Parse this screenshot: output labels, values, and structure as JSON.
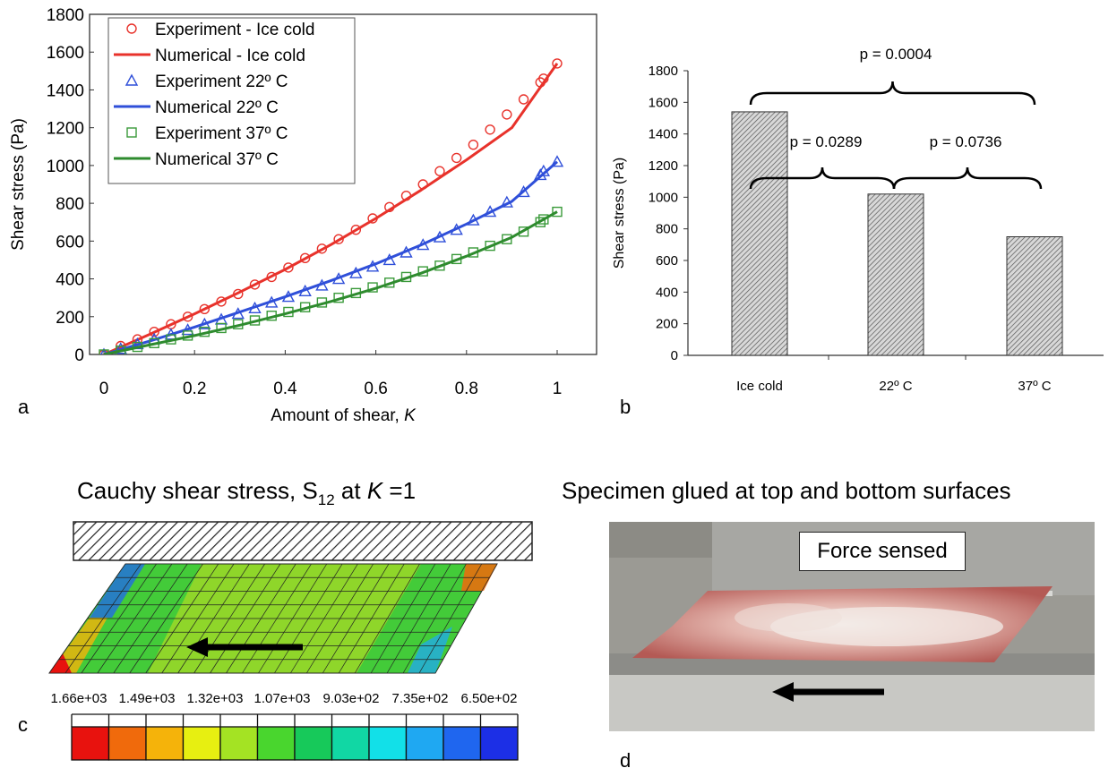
{
  "figure": {
    "panel_letters": [
      "a",
      "b",
      "c",
      "d"
    ]
  },
  "chart_data": [
    {
      "type": "line",
      "panel": "a",
      "xlabel": "Amount of shear, K",
      "ylabel": "Shear stress (Pa)",
      "xlim": [
        0,
        1.1
      ],
      "ylim": [
        0,
        1800
      ],
      "xticks": [
        "0",
        "0.2",
        "0.4",
        "0.6",
        "0.8",
        "1"
      ],
      "yticks": [
        "0",
        "200",
        "400",
        "600",
        "800",
        "1000",
        "1200",
        "1400",
        "1600",
        "1800"
      ],
      "grid": false,
      "legend_placement": "top-left",
      "series": [
        {
          "name": "Experiment - Ice cold",
          "kind": "scatter",
          "marker": "circle",
          "color": "#e8322b",
          "x": [
            0,
            0.037,
            0.074,
            0.111,
            0.148,
            0.185,
            0.222,
            0.259,
            0.296,
            0.333,
            0.37,
            0.407,
            0.444,
            0.481,
            0.518,
            0.556,
            0.593,
            0.63,
            0.667,
            0.704,
            0.741,
            0.778,
            0.815,
            0.852,
            0.889,
            0.926,
            0.963,
            0.97,
            1.0
          ],
          "y": [
            0,
            45,
            80,
            120,
            160,
            200,
            240,
            280,
            320,
            370,
            410,
            460,
            510,
            560,
            610,
            660,
            720,
            780,
            840,
            900,
            970,
            1040,
            1110,
            1190,
            1270,
            1350,
            1440,
            1460,
            1540
          ]
        },
        {
          "name": "Numerical   - Ice cold",
          "kind": "line",
          "color": "#e8322b",
          "x": [
            0,
            0.1,
            0.2,
            0.3,
            0.4,
            0.5,
            0.6,
            0.7,
            0.8,
            0.9,
            1.0
          ],
          "y": [
            0,
            105,
            215,
            330,
            450,
            580,
            720,
            870,
            1030,
            1200,
            1540
          ]
        },
        {
          "name": "Experiment  22º C",
          "kind": "scatter",
          "marker": "triangle",
          "color": "#2f4fd9",
          "x": [
            0,
            0.037,
            0.074,
            0.111,
            0.148,
            0.185,
            0.222,
            0.259,
            0.296,
            0.333,
            0.37,
            0.407,
            0.444,
            0.481,
            0.518,
            0.556,
            0.593,
            0.63,
            0.667,
            0.704,
            0.741,
            0.778,
            0.815,
            0.852,
            0.889,
            0.926,
            0.963,
            0.97,
            1.0
          ],
          "y": [
            0,
            30,
            55,
            80,
            105,
            130,
            160,
            185,
            215,
            245,
            275,
            305,
            335,
            365,
            400,
            430,
            465,
            500,
            540,
            580,
            620,
            660,
            710,
            755,
            805,
            860,
            950,
            970,
            1020
          ]
        },
        {
          "name": "Numerical    22º C",
          "kind": "line",
          "color": "#2f4fd9",
          "x": [
            0,
            0.1,
            0.2,
            0.3,
            0.4,
            0.5,
            0.6,
            0.7,
            0.8,
            0.9,
            1.0
          ],
          "y": [
            0,
            70,
            145,
            225,
            305,
            390,
            480,
            580,
            690,
            810,
            1020
          ]
        },
        {
          "name": "Experiment  37º C",
          "kind": "scatter",
          "marker": "square",
          "color": "#3a9a3a",
          "x": [
            0,
            0.037,
            0.074,
            0.111,
            0.148,
            0.185,
            0.222,
            0.259,
            0.296,
            0.333,
            0.37,
            0.407,
            0.444,
            0.481,
            0.518,
            0.556,
            0.593,
            0.63,
            0.667,
            0.704,
            0.741,
            0.778,
            0.815,
            0.852,
            0.889,
            0.926,
            0.963,
            0.97,
            1.0
          ],
          "y": [
            0,
            20,
            40,
            60,
            80,
            100,
            120,
            140,
            160,
            180,
            205,
            225,
            250,
            275,
            300,
            325,
            355,
            380,
            410,
            440,
            470,
            505,
            540,
            575,
            610,
            650,
            700,
            715,
            755
          ]
        },
        {
          "name": "Numerical    37º C",
          "kind": "line",
          "color": "#2e8b2e",
          "x": [
            0,
            0.1,
            0.2,
            0.3,
            0.4,
            0.5,
            0.6,
            0.7,
            0.8,
            0.9,
            1.0
          ],
          "y": [
            0,
            50,
            100,
            155,
            215,
            280,
            350,
            430,
            520,
            620,
            755
          ]
        }
      ]
    },
    {
      "type": "bar",
      "panel": "b",
      "xlabel": "",
      "ylabel": "Shear stress (Pa)",
      "ylim": [
        0,
        1800
      ],
      "yticks": [
        "0",
        "200",
        "400",
        "600",
        "800",
        "1000",
        "1200",
        "1400",
        "1600",
        "1800"
      ],
      "categories": [
        "Ice cold",
        "22º C",
        "37º C"
      ],
      "values": [
        1540,
        1020,
        750
      ],
      "grid": false,
      "annotations": [
        {
          "text": "p = 0.0004",
          "from": 0,
          "to": 2
        },
        {
          "text": "p = 0.0289",
          "from": 0,
          "to": 1
        },
        {
          "text": "p = 0.0736",
          "from": 1,
          "to": 2
        }
      ]
    }
  ],
  "panel_c": {
    "title_main": "Cauchy shear stress, S",
    "title_sub": "12",
    "title_at": " at ",
    "title_k": "K",
    "title_eq": " =1",
    "scale_labels": [
      "1.66e+03",
      "1.49e+03",
      "1.32e+03",
      "1.07e+03",
      "9.03e+02",
      "7.35e+02",
      "6.50e+02"
    ],
    "scale_colors": [
      "#e8120e",
      "#f06a0c",
      "#f5b30a",
      "#e7ef11",
      "#a4e323",
      "#49d62e",
      "#17c95a",
      "#11d7a4",
      "#12e0e8",
      "#1fa8f2",
      "#1f66ef",
      "#1c2fe6"
    ],
    "mesh_colors": {
      "center": "#8fd62a",
      "edge": "#36c93c",
      "corner_red": "#e8120e",
      "corner_blue": "#1f66ef"
    }
  },
  "panel_d": {
    "title": "Specimen glued at top and bottom surfaces",
    "force_label": "Force sensed"
  }
}
